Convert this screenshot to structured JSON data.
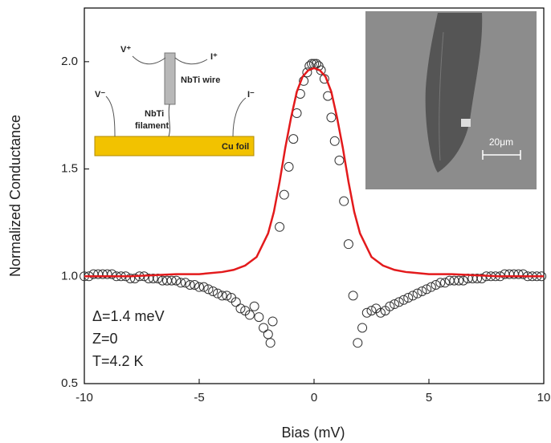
{
  "chart_data": {
    "type": "scatter",
    "xlabel": "Bias (mV)",
    "ylabel": "Normalized Conductance",
    "xlim": [
      -10,
      10
    ],
    "ylim": [
      0.5,
      2.25
    ],
    "xticks": [
      -10,
      -5,
      0,
      5,
      10
    ],
    "yticks": [
      {
        "value": 0.5,
        "label": "0.5"
      },
      {
        "value": 1.0,
        "label": "1.0"
      },
      {
        "value": 1.5,
        "label": "1.5"
      },
      {
        "value": 2.0,
        "label": "2.0"
      }
    ],
    "series": [
      {
        "type": "scatter",
        "color": "#333333",
        "x": [
          -10,
          -9.8,
          -9.6,
          -9.4,
          -9.2,
          -9.0,
          -8.8,
          -8.6,
          -8.4,
          -8.2,
          -8.0,
          -7.8,
          -7.6,
          -7.4,
          -7.2,
          -7.0,
          -6.8,
          -6.6,
          -6.4,
          -6.2,
          -6.0,
          -5.8,
          -5.6,
          -5.4,
          -5.2,
          -5.0,
          -4.8,
          -4.6,
          -4.4,
          -4.2,
          -4.0,
          -3.8,
          -3.6,
          -3.4,
          -3.2,
          -3.0,
          -2.8,
          -2.6,
          -2.4,
          -2.2,
          -2.0,
          -1.9,
          -1.8,
          -1.5,
          -1.3,
          -1.1,
          -0.9,
          -0.75,
          -0.6,
          -0.45,
          -0.3,
          -0.2,
          -0.1,
          0,
          0.1,
          0.2,
          0.3,
          0.45,
          0.6,
          0.75,
          0.9,
          1.1,
          1.3,
          1.5,
          1.7,
          1.9,
          2.1,
          2.3,
          2.5,
          2.7,
          2.9,
          3.1,
          3.3,
          3.5,
          3.7,
          3.9,
          4.1,
          4.3,
          4.5,
          4.7,
          4.9,
          5.1,
          5.3,
          5.5,
          5.7,
          5.9,
          6.1,
          6.3,
          6.5,
          6.7,
          6.9,
          7.1,
          7.3,
          7.5,
          7.7,
          7.9,
          8.1,
          8.3,
          8.5,
          8.7,
          8.9,
          9.1,
          9.3,
          9.5,
          9.7,
          9.9
        ],
        "values": [
          1.0,
          1.0,
          1.01,
          1.01,
          1.01,
          1.01,
          1.01,
          1.0,
          1.0,
          1.0,
          0.99,
          0.99,
          1.0,
          1.0,
          0.99,
          0.99,
          0.99,
          0.98,
          0.98,
          0.98,
          0.98,
          0.97,
          0.97,
          0.96,
          0.96,
          0.95,
          0.95,
          0.94,
          0.93,
          0.92,
          0.91,
          0.91,
          0.9,
          0.88,
          0.85,
          0.84,
          0.82,
          0.86,
          0.81,
          0.76,
          0.73,
          0.69,
          0.79,
          1.23,
          1.38,
          1.51,
          1.64,
          1.76,
          1.85,
          1.91,
          1.95,
          1.98,
          1.99,
          1.99,
          1.99,
          1.98,
          1.96,
          1.92,
          1.84,
          1.74,
          1.63,
          1.54,
          1.35,
          1.15,
          0.91,
          0.69,
          0.76,
          0.83,
          0.84,
          0.85,
          0.83,
          0.84,
          0.86,
          0.87,
          0.88,
          0.89,
          0.9,
          0.91,
          0.92,
          0.93,
          0.94,
          0.95,
          0.96,
          0.97,
          0.97,
          0.98,
          0.98,
          0.98,
          0.98,
          0.99,
          0.99,
          0.99,
          0.99,
          1.0,
          1.0,
          1.0,
          1.0,
          1.01,
          1.01,
          1.01,
          1.01,
          1.01,
          1.0,
          1.0,
          1.0,
          1.0
        ]
      },
      {
        "type": "line",
        "color": "#e31a1c",
        "x": [
          -10,
          -8,
          -6,
          -5,
          -4,
          -3.5,
          -3,
          -2.5,
          -2,
          -1.75,
          -1.5,
          -1.25,
          -1,
          -0.75,
          -0.5,
          -0.25,
          0,
          0.25,
          0.5,
          0.75,
          1,
          1.25,
          1.5,
          1.75,
          2,
          2.5,
          3,
          3.5,
          4,
          5,
          6,
          8,
          10
        ],
        "values": [
          1.0,
          1.0,
          1.01,
          1.01,
          1.02,
          1.03,
          1.05,
          1.09,
          1.2,
          1.3,
          1.44,
          1.6,
          1.74,
          1.86,
          1.93,
          1.96,
          1.97,
          1.96,
          1.93,
          1.86,
          1.74,
          1.6,
          1.44,
          1.3,
          1.2,
          1.09,
          1.05,
          1.03,
          1.02,
          1.01,
          1.01,
          1.0,
          1.0
        ]
      }
    ],
    "annotations": [
      "Δ=1.4 meV",
      "Z=0",
      "T=4.2 K"
    ],
    "inset_labels": [
      "V⁺",
      "I⁺",
      "NbTi wire",
      "V⁻",
      "I⁻",
      "NbTi",
      "filament",
      "Cu foil"
    ],
    "scale_bar": "20μm"
  }
}
